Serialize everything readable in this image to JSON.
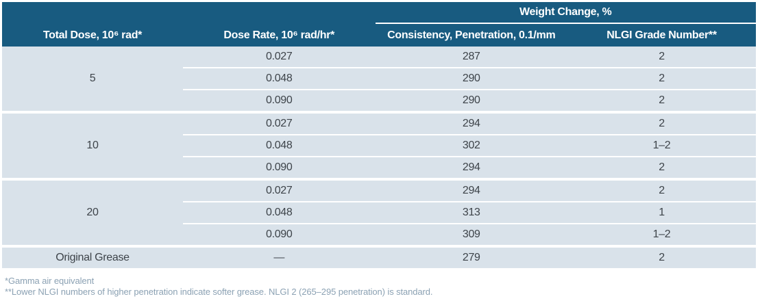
{
  "table": {
    "header": {
      "span_label": "Weight Change, %",
      "columns": [
        "Total Dose, 10⁶ rad*",
        "Dose Rate, 10⁶ rad/hr*",
        "Consistency, Penetration, 0.1/mm",
        "NLGI Grade Number**"
      ]
    },
    "groups": [
      {
        "total_dose": "5",
        "rows": [
          [
            "0.027",
            "287",
            "2"
          ],
          [
            "0.048",
            "290",
            "2"
          ],
          [
            "0.090",
            "290",
            "2"
          ]
        ]
      },
      {
        "total_dose": "10",
        "rows": [
          [
            "0.027",
            "294",
            "2"
          ],
          [
            "0.048",
            "302",
            "1–2"
          ],
          [
            "0.090",
            "294",
            "2"
          ]
        ]
      },
      {
        "total_dose": "20",
        "rows": [
          [
            "0.027",
            "294",
            "2"
          ],
          [
            "0.048",
            "313",
            "1"
          ],
          [
            "0.090",
            "309",
            "1–2"
          ]
        ]
      }
    ],
    "final_row": {
      "label": "Original Grease",
      "dose_rate": "—",
      "penetration": "279",
      "nlgi": "2"
    }
  },
  "footnotes": [
    "*Gamma air equivalent",
    "**Lower NLGI numbers of higher penetration indicate softer grease. NLGI 2 (265–295 penetration) is standard."
  ],
  "colors": {
    "header_bg": "#185b80",
    "header_text": "#ffffff",
    "row_bg": "#d9e2ea",
    "body_text": "#3d4349",
    "footnote_text": "#8ba1b3"
  }
}
